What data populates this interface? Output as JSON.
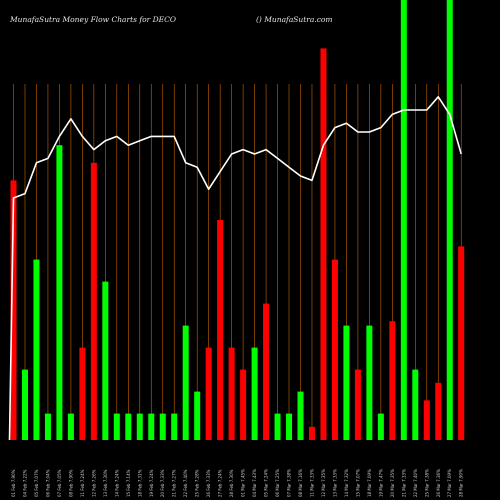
{
  "header": {
    "title_left": "MunafaSutra  Money Flow  Charts for DECO",
    "title_right": "() MunafaSutra.com"
  },
  "colors": {
    "background": "#000000",
    "grid": "#c86400",
    "up": "#00ff00",
    "down": "#ff0000",
    "line": "#ffffff"
  },
  "chart_data": {
    "type": "bar",
    "title": "MunafaSutra  Money Flow  Charts for DECO",
    "categories": [
      "01 Feb 7.90%",
      "04 Feb 7.22%",
      "05 Feb 7.07%",
      "06 Feb 7.04%",
      "07 Feb 7.05%",
      "08 Feb 7.90%",
      "11 Feb 7.24%",
      "12 Feb 7.26%",
      "13 Feb 7.30%",
      "14 Feb 7.24%",
      "15 Feb 7.14%",
      "18 Feb 7.31%",
      "19 Feb 7.24%",
      "20 Feb 7.33%",
      "21 Feb 7.27%",
      "22 Feb 7.40%",
      "25 Feb 7.28%",
      "26 Feb 7.33%",
      "27 Feb 7.24%",
      "28 Feb 7.30%",
      "01 Mar 7.45%",
      "04 Mar 7.43%",
      "05 Mar 7.24%",
      "06 Mar 7.25%",
      "07 Mar 7.38%",
      "08 Mar 7.16%",
      "11 Mar 7.33%",
      "12 Mar 7.35%",
      "13 Mar 7.33%",
      "14 Mar 7.32%",
      "15 Mar 7.07%",
      "18 Mar 7.09%",
      "19 Mar 7.47%",
      "20 Mar 7.35%",
      "21 Mar 7.33%",
      "22 Mar 7.40%",
      "25 Mar 7.38%",
      "26 Mar 7.36%",
      "27 Mar 7.09%",
      "28 Mar 7.90%"
    ],
    "values": [
      59,
      16,
      41,
      6,
      67,
      6,
      21,
      63,
      36,
      6,
      6,
      6,
      6,
      6,
      6,
      26,
      11,
      21,
      50,
      21,
      16,
      21,
      31,
      6,
      6,
      11,
      3,
      89,
      41,
      26,
      16,
      26,
      6,
      27,
      100,
      16,
      9,
      13,
      100,
      44
    ],
    "directions": [
      "down",
      "up",
      "up",
      "up",
      "up",
      "up",
      "down",
      "down",
      "up",
      "up",
      "up",
      "up",
      "up",
      "up",
      "up",
      "up",
      "up",
      "down",
      "down",
      "down",
      "down",
      "up",
      "down",
      "up",
      "up",
      "up",
      "down",
      "down",
      "down",
      "up",
      "down",
      "up",
      "up",
      "down",
      "up",
      "up",
      "down",
      "down",
      "up",
      "down"
    ],
    "line_values": [
      55,
      56,
      63,
      64,
      69,
      73,
      69,
      66,
      68,
      69,
      67,
      68,
      69,
      69,
      69,
      63,
      62,
      57,
      61,
      65,
      66,
      65,
      66,
      64,
      62,
      60,
      59,
      67,
      71,
      72,
      70,
      70,
      71,
      74,
      75,
      75,
      75,
      78,
      74,
      65
    ],
    "ylim": [
      0,
      100
    ],
    "xlabel": "",
    "ylabel": "",
    "grid": true
  }
}
